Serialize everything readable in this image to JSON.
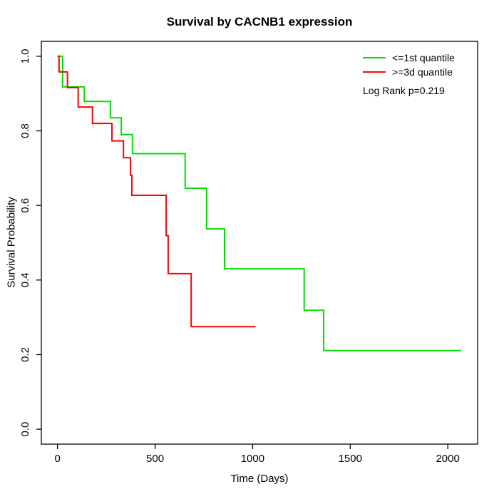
{
  "chart_data": {
    "type": "line",
    "subtype": "kaplan-meier-step",
    "title": "Survival by CACNB1 expression",
    "xlabel": "Time (Days)",
    "ylabel": "Survival Probability",
    "xlim": [
      0,
      2070
    ],
    "ylim": [
      0.0,
      1.0
    ],
    "x_ticks": [
      0,
      500,
      1000,
      1500,
      2000
    ],
    "y_ticks": [
      "0.0",
      "0.2",
      "0.4",
      "0.6",
      "0.8",
      "1.0"
    ],
    "grid": false,
    "legend_position": "top-right",
    "annotation": "Log Rank p=0.219",
    "axis_color": "#000000",
    "background_color": "#ffffff",
    "series": [
      {
        "name": "<=1st quantile",
        "color": "#00e000",
        "end_time": 2070,
        "points": [
          [
            0,
            1.0
          ],
          [
            26,
            0.918
          ],
          [
            137,
            0.879
          ],
          [
            271,
            0.835
          ],
          [
            327,
            0.79
          ],
          [
            384,
            0.739
          ],
          [
            654,
            0.646
          ],
          [
            764,
            0.537
          ],
          [
            856,
            0.43
          ],
          [
            1264,
            0.319
          ],
          [
            1364,
            0.211
          ]
        ]
      },
      {
        "name": ">=3d quantile",
        "color": "#ff0000",
        "end_time": 1015,
        "points": [
          [
            0,
            1.0
          ],
          [
            8,
            0.958
          ],
          [
            51,
            0.916
          ],
          [
            106,
            0.864
          ],
          [
            179,
            0.82
          ],
          [
            279,
            0.773
          ],
          [
            338,
            0.728
          ],
          [
            374,
            0.681
          ],
          [
            381,
            0.627
          ],
          [
            557,
            0.519
          ],
          [
            567,
            0.417
          ],
          [
            685,
            0.275
          ]
        ]
      }
    ]
  }
}
